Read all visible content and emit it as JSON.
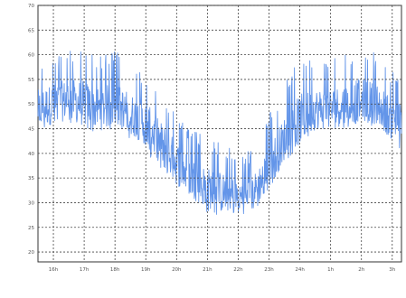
{
  "chart_data": {
    "type": "line",
    "title": "",
    "xlabel": "",
    "ylabel": "",
    "x_ticks": [
      "16h",
      "17h",
      "18h",
      "19h",
      "20h",
      "21h",
      "22h",
      "23h",
      "24h",
      "1h",
      "2h",
      "3h"
    ],
    "y_ticks": [
      20,
      25,
      30,
      35,
      40,
      45,
      50,
      55,
      60,
      65,
      70
    ],
    "ylim": [
      18,
      70
    ],
    "xlim": [
      15.5,
      27.3
    ],
    "grid": true,
    "series": [
      {
        "color": "#5b8fe8",
        "x": [
          15.5,
          16.0,
          16.5,
          17.0,
          17.5,
          18.0,
          18.5,
          19.0,
          19.5,
          20.0,
          20.5,
          21.0,
          21.5,
          22.0,
          22.5,
          23.0,
          23.5,
          24.0,
          24.5,
          25.0,
          25.5,
          26.0,
          26.5,
          27.0,
          27.3
        ],
        "mean": [
          49,
          50,
          51,
          50,
          49,
          50,
          48,
          46,
          42,
          38,
          35,
          33,
          32,
          31,
          32,
          37,
          43,
          47,
          49,
          49,
          50,
          51,
          50,
          47,
          46
        ],
        "low": [
          44,
          45,
          46,
          45,
          44,
          45,
          43,
          40,
          36,
          32,
          30,
          28,
          27,
          27,
          28,
          32,
          38,
          42,
          44,
          44,
          45,
          46,
          45,
          41,
          40
        ],
        "high": [
          58,
          60,
          61,
          62,
          60,
          61,
          58,
          56,
          52,
          48,
          45,
          43,
          42,
          40,
          41,
          48,
          54,
          60,
          59,
          59,
          60,
          62,
          60,
          57,
          55
        ]
      }
    ]
  },
  "colors": {
    "line": "#5b8fe8",
    "grid": "#444444",
    "axis": "#333333",
    "tick_text": "#555555"
  }
}
